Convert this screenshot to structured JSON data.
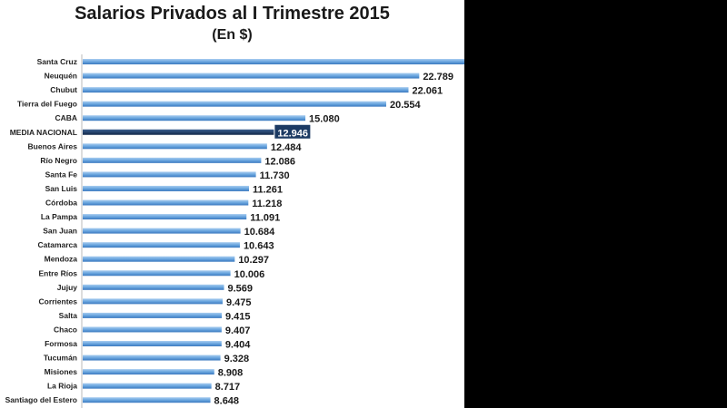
{
  "chart_data": {
    "type": "bar",
    "orientation": "horizontal",
    "title": "Salarios Privados al I Trimestre 2015",
    "subtitle": "(En $)",
    "xlabel": "",
    "ylabel": "",
    "grid": false,
    "highlight_category": "MEDIA NACIONAL",
    "colors": {
      "bar": "#6aa6df",
      "bar_dark": "#3a78bf",
      "highlight": "#1c3a63",
      "highlight_label_bg": "#1c3a63"
    },
    "categories": [
      "Santa Cruz",
      "Neuquén",
      "Chubut",
      "Tierra del Fuego",
      "CABA",
      "MEDIA NACIONAL",
      "Buenos Aires",
      "Río Negro",
      "Santa Fe",
      "San Luis",
      "Córdoba",
      "La Pampa",
      "San Juan",
      "Catamarca",
      "Mendoza",
      "Entre Ríos",
      "Jujuy",
      "Corrientes",
      "Salta",
      "Chaco",
      "Formosa",
      "Tucumán",
      "Misiones",
      "La Rioja",
      "Santiago del Estero"
    ],
    "values": [
      26000,
      22789,
      22061,
      20554,
      15080,
      12946,
      12484,
      12086,
      11730,
      11261,
      11218,
      11091,
      10684,
      10643,
      10297,
      10006,
      9569,
      9475,
      9415,
      9407,
      9404,
      9328,
      8908,
      8717,
      8648
    ],
    "labels": [
      "",
      "22.789",
      "22.061",
      "20.554",
      "15.080",
      "12.946",
      "12.484",
      "12.086",
      "11.730",
      "11.261",
      "11.218",
      "11.091",
      "10.684",
      "10.643",
      "10.297",
      "10.006",
      "9.569",
      "9.475",
      "9.415",
      "9.407",
      "9.404",
      "9.328",
      "8.908",
      "8.717",
      "8.648"
    ]
  }
}
